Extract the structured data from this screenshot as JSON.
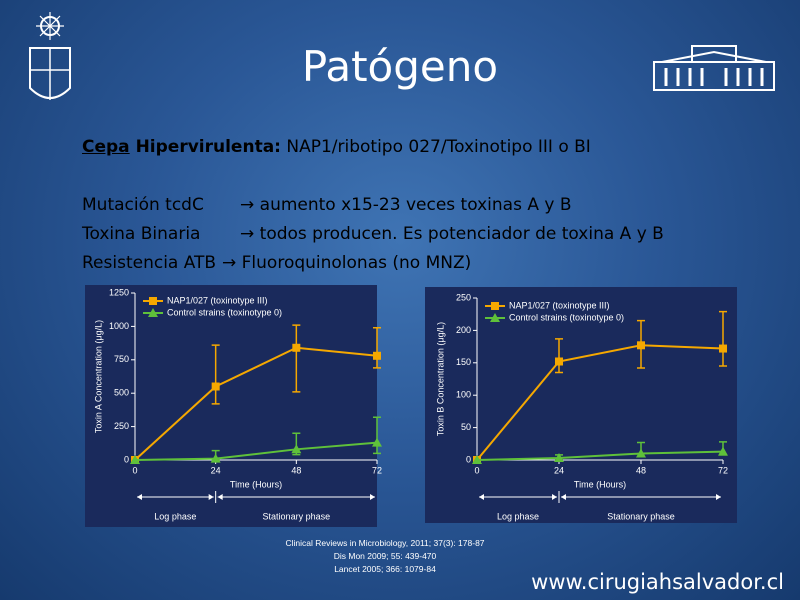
{
  "title": "Patógeno",
  "strain_label_underlined": "Cepa",
  "strain_label_bold": " Hipervirulenta:",
  "strain_text": " NAP1/ribotipo 027/Toxinotipo III o BI",
  "bullets": [
    {
      "term": "Mutación tcdC",
      "text": "→ aumento x15-23 veces toxinas A y B"
    },
    {
      "term": "Toxina Binaria",
      "text": "→ todos producen. Es potenciador de toxina A y B"
    },
    {
      "term": "Resistencia ATB",
      "text": "→ Fluoroquinolonas (no MNZ)"
    }
  ],
  "citations": [
    "Clinical Reviews in Microbiology, 2011; 37(3): 178-87",
    "Dis Mon 2009; 55: 439-470",
    "Lancet 2005; 366: 1079-84"
  ],
  "website": "www.cirugiahsalvador.cl",
  "chart_data": [
    {
      "type": "line",
      "x_label": "Time (Hours)",
      "y_label": "Toxin A Concentration (μg/L)",
      "x": [
        0,
        24,
        48,
        72
      ],
      "xlim": [
        0,
        72
      ],
      "xticks": [
        0,
        24,
        48,
        72
      ],
      "ylim": [
        0,
        1250
      ],
      "yticks": [
        0,
        250,
        500,
        750,
        1000,
        1250
      ],
      "series": [
        {
          "name": "NAP1/027 (toxinotype III)",
          "color": "#f5a800",
          "marker": "square",
          "values": [
            0,
            550,
            840,
            780
          ],
          "err_plus": [
            0,
            310,
            170,
            210
          ],
          "err_minus": [
            0,
            130,
            330,
            90
          ]
        },
        {
          "name": "Control strains (toxinotype 0)",
          "color": "#5fc13a",
          "marker": "triangle",
          "values": [
            0,
            10,
            80,
            130
          ],
          "err_plus": [
            0,
            60,
            120,
            190
          ],
          "err_minus": [
            0,
            10,
            40,
            80
          ]
        }
      ],
      "phases": [
        {
          "label": "Log phase",
          "start": 0,
          "end": 24
        },
        {
          "label": "Stationary phase",
          "start": 24,
          "end": 72
        }
      ]
    },
    {
      "type": "line",
      "x_label": "Time (Hours)",
      "y_label": "Toxin B Concentration (μg/L)",
      "x": [
        0,
        24,
        48,
        72
      ],
      "xlim": [
        0,
        72
      ],
      "xticks": [
        0,
        24,
        48,
        72
      ],
      "ylim": [
        0,
        250
      ],
      "yticks": [
        0,
        50,
        100,
        150,
        200,
        250
      ],
      "series": [
        {
          "name": "NAP1/027 (toxinotype III)",
          "color": "#f5a800",
          "marker": "square",
          "values": [
            0,
            152,
            177,
            172
          ],
          "err_plus": [
            0,
            35,
            38,
            57
          ],
          "err_minus": [
            0,
            17,
            35,
            27
          ]
        },
        {
          "name": "Control strains (toxinotype 0)",
          "color": "#5fc13a",
          "marker": "triangle",
          "values": [
            0,
            3,
            10,
            13
          ],
          "err_plus": [
            0,
            5,
            17,
            15
          ],
          "err_minus": [
            0,
            3,
            5,
            5
          ]
        }
      ],
      "phases": [
        {
          "label": "Log phase",
          "start": 0,
          "end": 24
        },
        {
          "label": "Stationary phase",
          "start": 24,
          "end": 72
        }
      ]
    }
  ]
}
